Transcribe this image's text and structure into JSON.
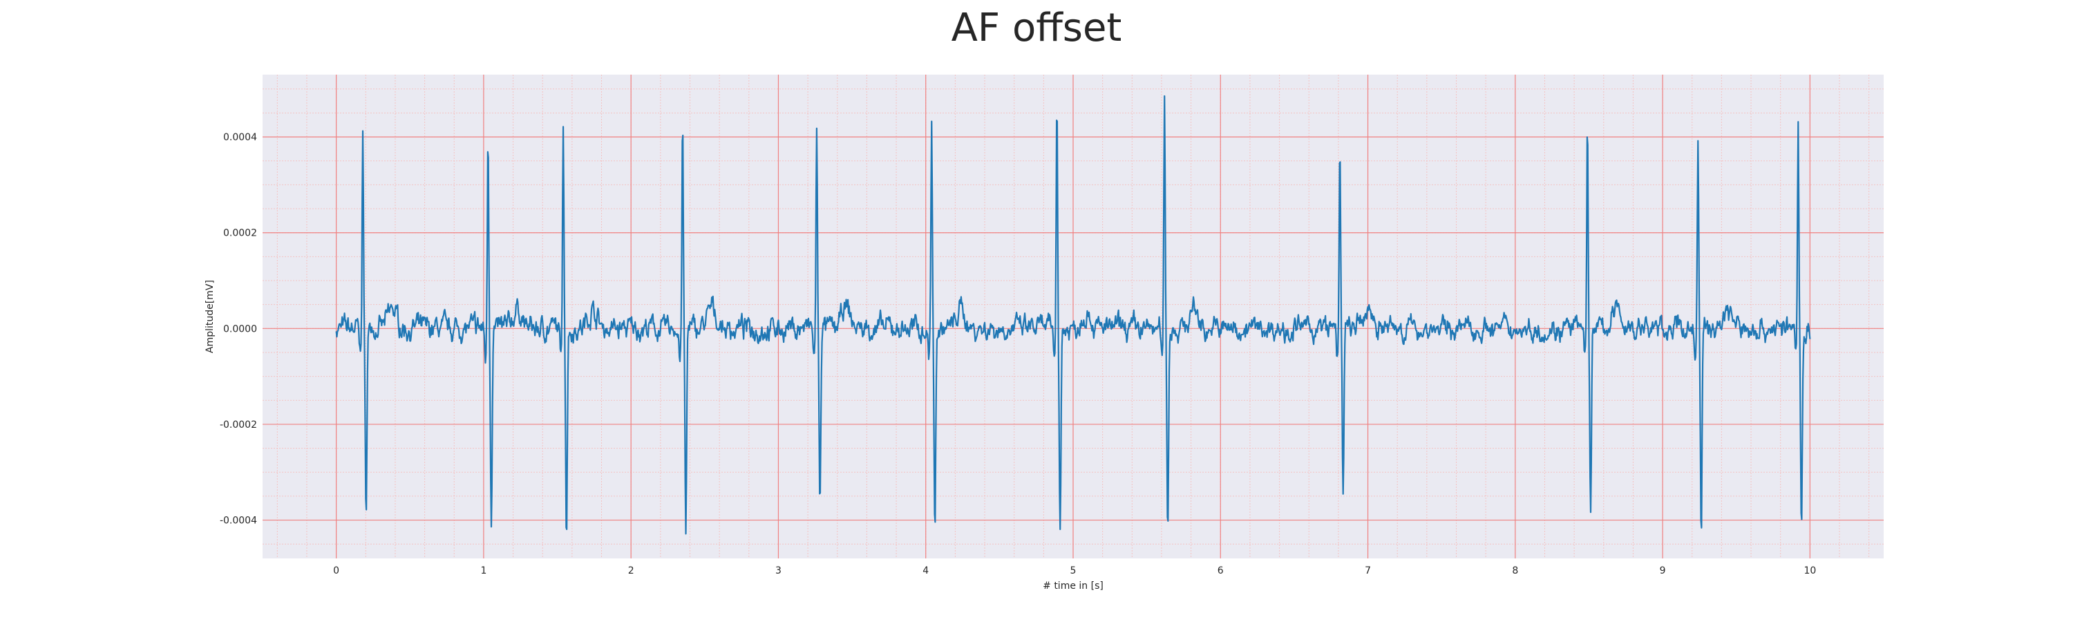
{
  "chart_data": {
    "type": "line",
    "title": "AF offset",
    "xlabel": "# time in [s]",
    "ylabel": "Amplitude[mV]",
    "xlim": [
      -0.5,
      10.5
    ],
    "ylim": [
      -0.00048,
      0.00053
    ],
    "x_ticks": [
      0,
      1,
      2,
      3,
      4,
      5,
      6,
      7,
      8,
      9,
      10
    ],
    "x_tick_labels": [
      "0",
      "1",
      "2",
      "3",
      "4",
      "5",
      "6",
      "7",
      "8",
      "9",
      "10"
    ],
    "y_ticks": [
      -0.0004,
      -0.0002,
      0.0,
      0.0002,
      0.0004
    ],
    "y_tick_labels": [
      "-0.0004",
      "-0.0002",
      "0.0000",
      "0.0002",
      "0.0004"
    ],
    "grid": true,
    "minor_grid": true,
    "colors": {
      "line": "#1f77b4",
      "plot_bg": "#eaeaf2",
      "major_grid": "#f08080",
      "minor_grid": "#f4c2c2"
    },
    "series": [
      {
        "peaks": [
          {
            "t": 0.18,
            "r": 0.00042,
            "s": -0.0004
          },
          {
            "t": 1.03,
            "r": 0.00042,
            "s": -0.00039
          },
          {
            "t": 1.54,
            "r": 0.00045,
            "s": -0.00042
          },
          {
            "t": 2.35,
            "r": 0.00044,
            "s": -0.00043
          },
          {
            "t": 3.26,
            "r": 0.00041,
            "s": -0.00037
          },
          {
            "t": 4.04,
            "r": 0.00045,
            "s": -0.00043
          },
          {
            "t": 4.89,
            "r": 0.00049,
            "s": -0.00042
          },
          {
            "t": 5.62,
            "r": 0.00049,
            "s": -0.00042
          },
          {
            "t": 6.81,
            "r": 0.00041,
            "s": -0.00036
          },
          {
            "t": 8.49,
            "r": 0.00043,
            "s": -0.00038
          },
          {
            "t": 9.24,
            "r": 0.00039,
            "s": -0.00042
          },
          {
            "t": 9.92,
            "r": 0.00043,
            "s": -0.00042
          }
        ],
        "t_start": 0.0,
        "t_end": 10.0,
        "baseline_noise_amplitude": 3e-05
      }
    ]
  }
}
